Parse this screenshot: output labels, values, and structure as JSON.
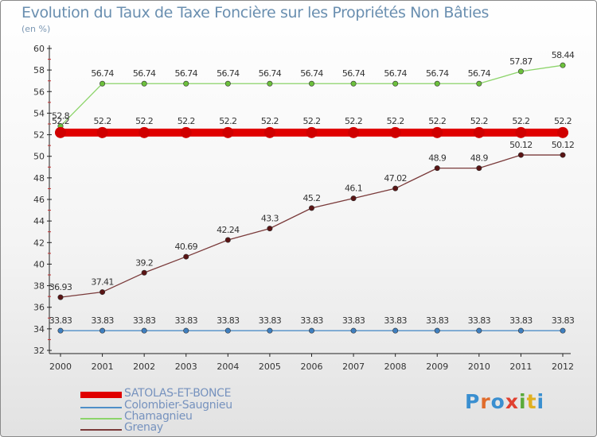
{
  "title": "Evolution du Taux de Taxe Foncière sur les Propriétés Non Bâties",
  "unit": "(en %)",
  "logo": {
    "text": "Proxiti",
    "colors": [
      "#3a8fd0",
      "#e06c2c",
      "#3a8fd0",
      "#e04030",
      "#5aaa3a",
      "#e0b020",
      "#3a8fd0"
    ]
  },
  "chart_data": {
    "type": "line",
    "x": [
      2000,
      2001,
      2002,
      2003,
      2004,
      2005,
      2006,
      2007,
      2008,
      2009,
      2010,
      2011,
      2012
    ],
    "ylim": [
      32,
      60
    ],
    "yticks": [
      32,
      34,
      36,
      38,
      40,
      42,
      44,
      46,
      48,
      50,
      52,
      54,
      56,
      58,
      60
    ],
    "grid": false,
    "legend_position": "bottom-left",
    "series": [
      {
        "name": "SATOLAS-ET-BONCE",
        "color": "#e00000",
        "point_color": "#d00000",
        "thick": true,
        "values": [
          52.2,
          52.2,
          52.2,
          52.2,
          52.2,
          52.2,
          52.2,
          52.2,
          52.2,
          52.2,
          52.2,
          52.2,
          52.2
        ],
        "labels": [
          "52.2",
          "52.2",
          "52.2",
          "52.2",
          "52.2",
          "52.2",
          "52.2",
          "52.2",
          "52.2",
          "52.2",
          "52.2",
          "52.2",
          "52.2"
        ]
      },
      {
        "name": "Colombier-Saugnieu",
        "color": "#4f8fc8",
        "point_color": "#3f7fbf",
        "thick": false,
        "values": [
          33.83,
          33.83,
          33.83,
          33.83,
          33.83,
          33.83,
          33.83,
          33.83,
          33.83,
          33.83,
          33.83,
          33.83,
          33.83
        ],
        "labels": [
          "33.83",
          "33.83",
          "33.83",
          "33.83",
          "33.83",
          "33.83",
          "33.83",
          "33.83",
          "33.83",
          "33.83",
          "33.83",
          "33.83",
          "33.83"
        ]
      },
      {
        "name": "Chamagnieu",
        "color": "#8cd46a",
        "point_color": "#6cc03c",
        "thick": false,
        "values": [
          52.8,
          56.74,
          56.74,
          56.74,
          56.74,
          56.74,
          56.74,
          56.74,
          56.74,
          56.74,
          56.74,
          57.87,
          58.44
        ],
        "labels": [
          "52.8",
          "56.74",
          "56.74",
          "56.74",
          "56.74",
          "56.74",
          "56.74",
          "56.74",
          "56.74",
          "56.74",
          "56.74",
          "57.87",
          "58.44"
        ]
      },
      {
        "name": "Grenay",
        "color": "#7a3a3a",
        "point_color": "#5a1414",
        "thick": false,
        "values": [
          36.93,
          37.41,
          39.2,
          40.69,
          42.24,
          43.3,
          45.2,
          46.1,
          47.02,
          48.9,
          48.9,
          50.12,
          50.12
        ],
        "labels": [
          "36.93",
          "37.41",
          "39.2",
          "40.69",
          "42.24",
          "43.3",
          "45.2",
          "46.1",
          "47.02",
          "48.9",
          "48.9",
          "50.12",
          "50.12"
        ]
      }
    ]
  }
}
